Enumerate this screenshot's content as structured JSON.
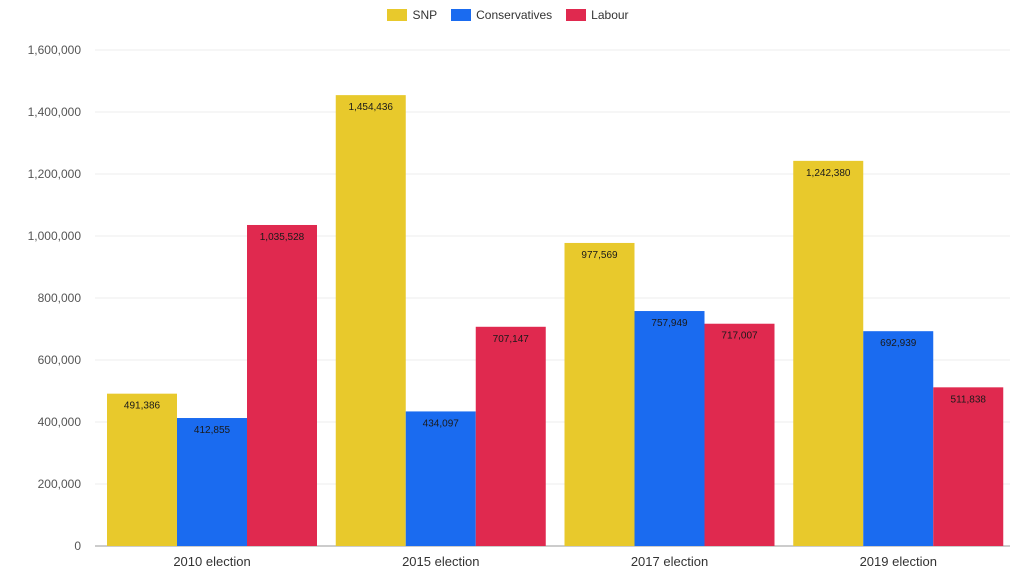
{
  "chart_data": {
    "type": "bar",
    "categories": [
      "2010 election",
      "2015 election",
      "2017 election",
      "2019 election"
    ],
    "series": [
      {
        "name": "SNP",
        "color": "#e8c92c",
        "values": [
          491386,
          1454436,
          977569,
          1242380
        ],
        "labels": [
          "491,386",
          "1,454,436",
          "977,569",
          "1,242,380"
        ]
      },
      {
        "name": "Conservatives",
        "color": "#1a6bf0",
        "values": [
          412855,
          434097,
          757949,
          692939
        ],
        "labels": [
          "412,855",
          "434,097",
          "757,949",
          "692,939"
        ]
      },
      {
        "name": "Labour",
        "color": "#e0294f",
        "values": [
          1035528,
          707147,
          717007,
          511838
        ],
        "labels": [
          "1,035,528",
          "707,147",
          "717,007",
          "511,838"
        ]
      }
    ],
    "ylim": [
      0,
      1600000
    ],
    "yticks": [
      0,
      200000,
      400000,
      600000,
      800000,
      1000000,
      1200000,
      1400000,
      1600000
    ],
    "ytick_labels": [
      "0",
      "200,000",
      "400,000",
      "600,000",
      "800,000",
      "1,000,000",
      "1,200,000",
      "1,400,000",
      "1,600,000"
    ],
    "grid": true,
    "legend_position": "top-center",
    "title": "",
    "xlabel": "",
    "ylabel": ""
  }
}
